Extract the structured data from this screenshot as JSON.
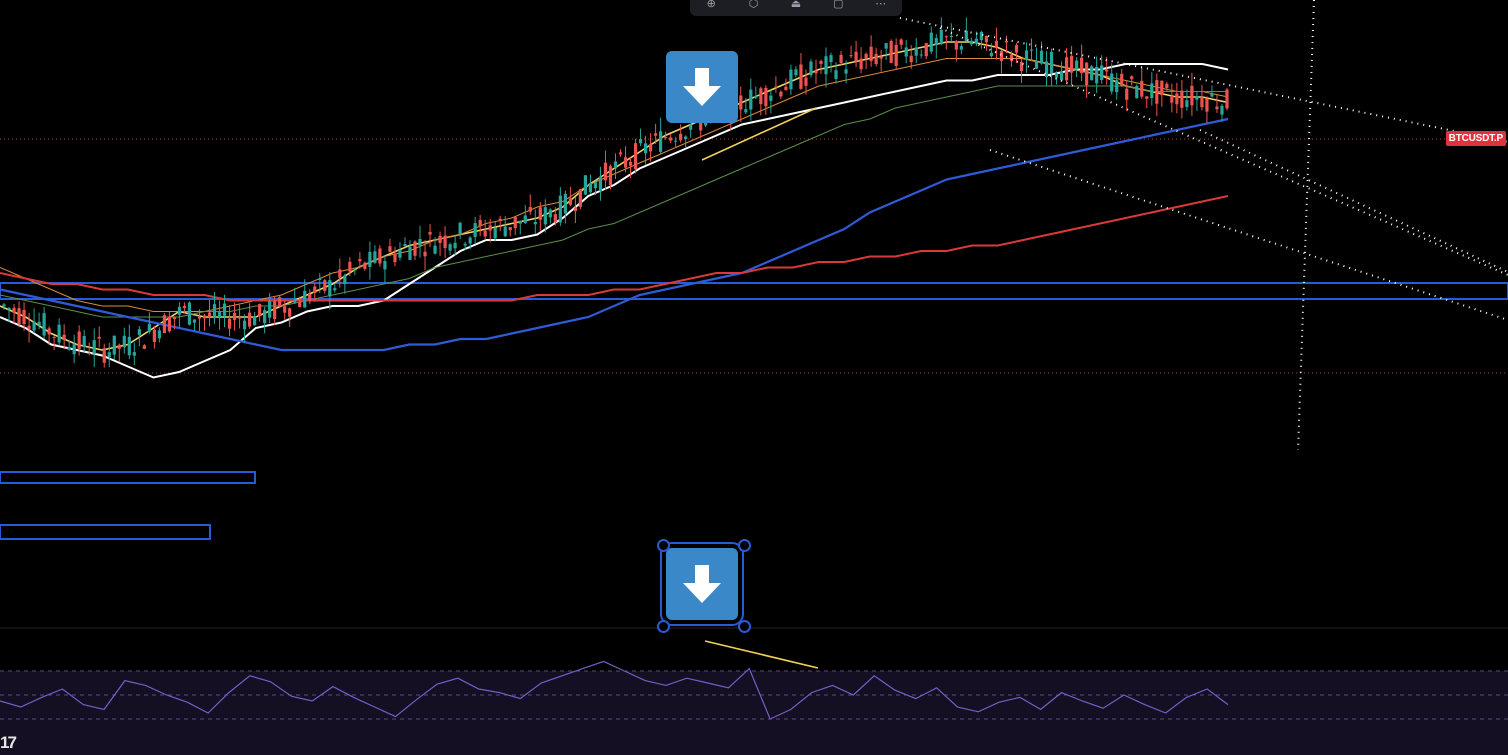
{
  "symbol": "BTCUSDT.P",
  "logo_text": "17",
  "toolbar": {
    "icons": [
      "add-text-icon",
      "magnet-icon",
      "lock-icon",
      "trash-icon",
      "more-icon"
    ],
    "glyphs": [
      "⊕",
      "⬡",
      "⏏",
      "▢",
      "⋯"
    ]
  },
  "colors": {
    "candle_up": "#26a69a",
    "candle_down": "#ef5350",
    "ma_white": "#ffffff",
    "ma_yellow": "#f0d66b",
    "ma_orange": "#d98b3a",
    "ma_green": "#5a8f4a",
    "ma_blue": "#2f5bd9",
    "ma_red": "#d83a3a",
    "rsi_line": "#7a5cc6",
    "divergence": "#f2d15a",
    "zone_border": "#2a5bd7",
    "arrow_button": "#3b88c8"
  },
  "chart_data": {
    "type": "line",
    "title": "",
    "xlabel": "",
    "ylabel": "",
    "grid": false,
    "candles_count": 245,
    "series": [
      {
        "values": [
          0.46,
          0.44,
          0.41,
          0.4,
          0.39,
          0.37,
          0.35,
          0.36,
          0.38,
          0.4,
          0.44,
          0.45,
          0.47,
          0.48,
          0.48,
          0.49,
          0.52,
          0.55,
          0.58,
          0.6,
          0.6,
          0.61,
          0.64,
          0.68,
          0.7,
          0.73,
          0.75,
          0.77,
          0.79,
          0.81,
          0.82,
          0.83,
          0.84,
          0.85,
          0.86,
          0.87,
          0.88,
          0.89,
          0.89,
          0.9,
          0.9,
          0.9,
          0.91,
          0.91,
          0.92,
          0.92,
          0.92,
          0.92,
          0.91
        ]
      },
      {
        "values": [
          0.48,
          0.46,
          0.43,
          0.41,
          0.4,
          0.41,
          0.44,
          0.47,
          0.46,
          0.46,
          0.46,
          0.48,
          0.5,
          0.52,
          0.55,
          0.57,
          0.59,
          0.6,
          0.61,
          0.62,
          0.63,
          0.64,
          0.66,
          0.7,
          0.73,
          0.76,
          0.79,
          0.81,
          0.83,
          0.85,
          0.87,
          0.89,
          0.91,
          0.92,
          0.93,
          0.94,
          0.95,
          0.96,
          0.96,
          0.95,
          0.93,
          0.92,
          0.91,
          0.9,
          0.88,
          0.87,
          0.86,
          0.86,
          0.85
        ]
      },
      {
        "values": [
          0.55,
          0.53,
          0.51,
          0.49,
          0.48,
          0.48,
          0.47,
          0.47,
          0.47,
          0.48,
          0.49,
          0.5,
          0.52,
          0.54,
          0.55,
          0.57,
          0.58,
          0.6,
          0.61,
          0.63,
          0.64,
          0.66,
          0.67,
          0.7,
          0.72,
          0.74,
          0.76,
          0.78,
          0.8,
          0.82,
          0.84,
          0.86,
          0.88,
          0.89,
          0.9,
          0.91,
          0.92,
          0.93,
          0.93,
          0.93,
          0.93,
          0.92,
          0.91,
          0.9,
          0.89,
          0.88,
          0.87,
          0.87,
          0.86
        ]
      },
      {
        "values": [
          0.5,
          0.49,
          0.48,
          0.47,
          0.46,
          0.46,
          0.46,
          0.46,
          0.47,
          0.47,
          0.48,
          0.48,
          0.49,
          0.5,
          0.51,
          0.52,
          0.53,
          0.55,
          0.56,
          0.57,
          0.58,
          0.59,
          0.6,
          0.62,
          0.63,
          0.65,
          0.67,
          0.69,
          0.71,
          0.73,
          0.75,
          0.77,
          0.79,
          0.81,
          0.82,
          0.84,
          0.85,
          0.86,
          0.87,
          0.88,
          0.88,
          0.88,
          0.88,
          0.88,
          0.88,
          0.87,
          0.87,
          0.87,
          0.87
        ]
      },
      {
        "values": [
          0.51,
          0.5,
          0.49,
          0.48,
          0.47,
          0.46,
          0.45,
          0.44,
          0.43,
          0.42,
          0.41,
          0.4,
          0.4,
          0.4,
          0.4,
          0.4,
          0.41,
          0.41,
          0.42,
          0.42,
          0.43,
          0.44,
          0.45,
          0.46,
          0.48,
          0.5,
          0.51,
          0.52,
          0.53,
          0.54,
          0.56,
          0.58,
          0.6,
          0.62,
          0.65,
          0.67,
          0.69,
          0.71,
          0.72,
          0.73,
          0.74,
          0.75,
          0.76,
          0.77,
          0.78,
          0.79,
          0.8,
          0.81,
          0.82
        ]
      },
      {
        "values": [
          0.54,
          0.53,
          0.52,
          0.52,
          0.51,
          0.51,
          0.5,
          0.5,
          0.5,
          0.49,
          0.49,
          0.49,
          0.49,
          0.49,
          0.49,
          0.49,
          0.49,
          0.49,
          0.49,
          0.49,
          0.49,
          0.5,
          0.5,
          0.5,
          0.51,
          0.51,
          0.52,
          0.53,
          0.54,
          0.54,
          0.55,
          0.55,
          0.56,
          0.56,
          0.57,
          0.57,
          0.58,
          0.58,
          0.59,
          0.59,
          0.6,
          0.61,
          0.62,
          0.63,
          0.64,
          0.65,
          0.66,
          0.67,
          0.68
        ]
      }
    ],
    "rsi": {
      "levels": [
        70,
        50,
        30
      ],
      "values": [
        45,
        40,
        48,
        55,
        42,
        38,
        62,
        58,
        50,
        44,
        35,
        52,
        66,
        61,
        49,
        45,
        57,
        48,
        40,
        32,
        46,
        59,
        64,
        55,
        52,
        47,
        60,
        66,
        72,
        78,
        70,
        62,
        58,
        64,
        60,
        56,
        72,
        30,
        38,
        52,
        58,
        50,
        66,
        54,
        47,
        56,
        40,
        36,
        44,
        48,
        38,
        52,
        45,
        39,
        50,
        42,
        35,
        48,
        55,
        42
      ]
    }
  }
}
